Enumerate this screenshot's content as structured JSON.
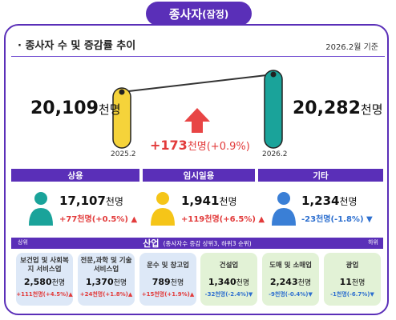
{
  "header": {
    "title_main": "종사자",
    "title_paren": "(잠정)"
  },
  "section": {
    "subtitle": "· 종사자 수 및 증감률 추이",
    "date_note": "2026.2월 기준"
  },
  "total": {
    "left_value": "20,109",
    "left_unit": "천명",
    "left_year": "2025.2",
    "right_value": "20,282",
    "right_unit": "천명",
    "right_year": "2026.2",
    "change": "+173",
    "change_unit": "천명",
    "change_pct": "(+0.9%)"
  },
  "categories": [
    {
      "label": "상용",
      "value": "17,107",
      "unit": "천명",
      "change": "+77",
      "change_unit": "천명",
      "pct": "(+0.5%)",
      "dir": "up"
    },
    {
      "label": "임시일용",
      "value": "1,941",
      "unit": "천명",
      "change": "+119",
      "change_unit": "천명",
      "pct": "(+6.5%)",
      "dir": "up"
    },
    {
      "label": "기타",
      "value": "1,234",
      "unit": "천명",
      "change": "-23",
      "change_unit": "천명",
      "pct": "(-1.8%)",
      "dir": "down"
    }
  ],
  "industry": {
    "title": "산업",
    "title_note": "(종사자수 증감 상위3, 하위3 순위)",
    "left_label": "상위",
    "right_label": "하위",
    "cards": [
      {
        "name": "보건업 및 사회복지 서비스업",
        "value": "2,580",
        "unit": "천명",
        "change": "+111천명(+4.5%)",
        "dir": "up"
      },
      {
        "name": "전문,과학 및 기술 서비스업",
        "value": "1,370",
        "unit": "천명",
        "change": "+24천명(+1.8%)",
        "dir": "up"
      },
      {
        "name": "운수 및 창고업",
        "value": "789",
        "unit": "천명",
        "change": "+15천명(+1.9%)",
        "dir": "up"
      },
      {
        "name": "건설업",
        "value": "1,340",
        "unit": "천명",
        "change": "-32천명(-2.4%)",
        "dir": "down"
      },
      {
        "name": "도매 및 소매업",
        "value": "2,243",
        "unit": "천명",
        "change": "-9천명(-0.4%)",
        "dir": "down"
      },
      {
        "name": "광업",
        "value": "11",
        "unit": "천명",
        "change": "-1천명(-6.7%)",
        "dir": "down"
      }
    ]
  },
  "colors": {
    "accent": "#5a2fb8",
    "up": "#e23b3b",
    "down": "#2d6fcf",
    "teal": "#1aa39a",
    "yellow": "#f5c518",
    "blue_person": "#3a7fd6"
  }
}
